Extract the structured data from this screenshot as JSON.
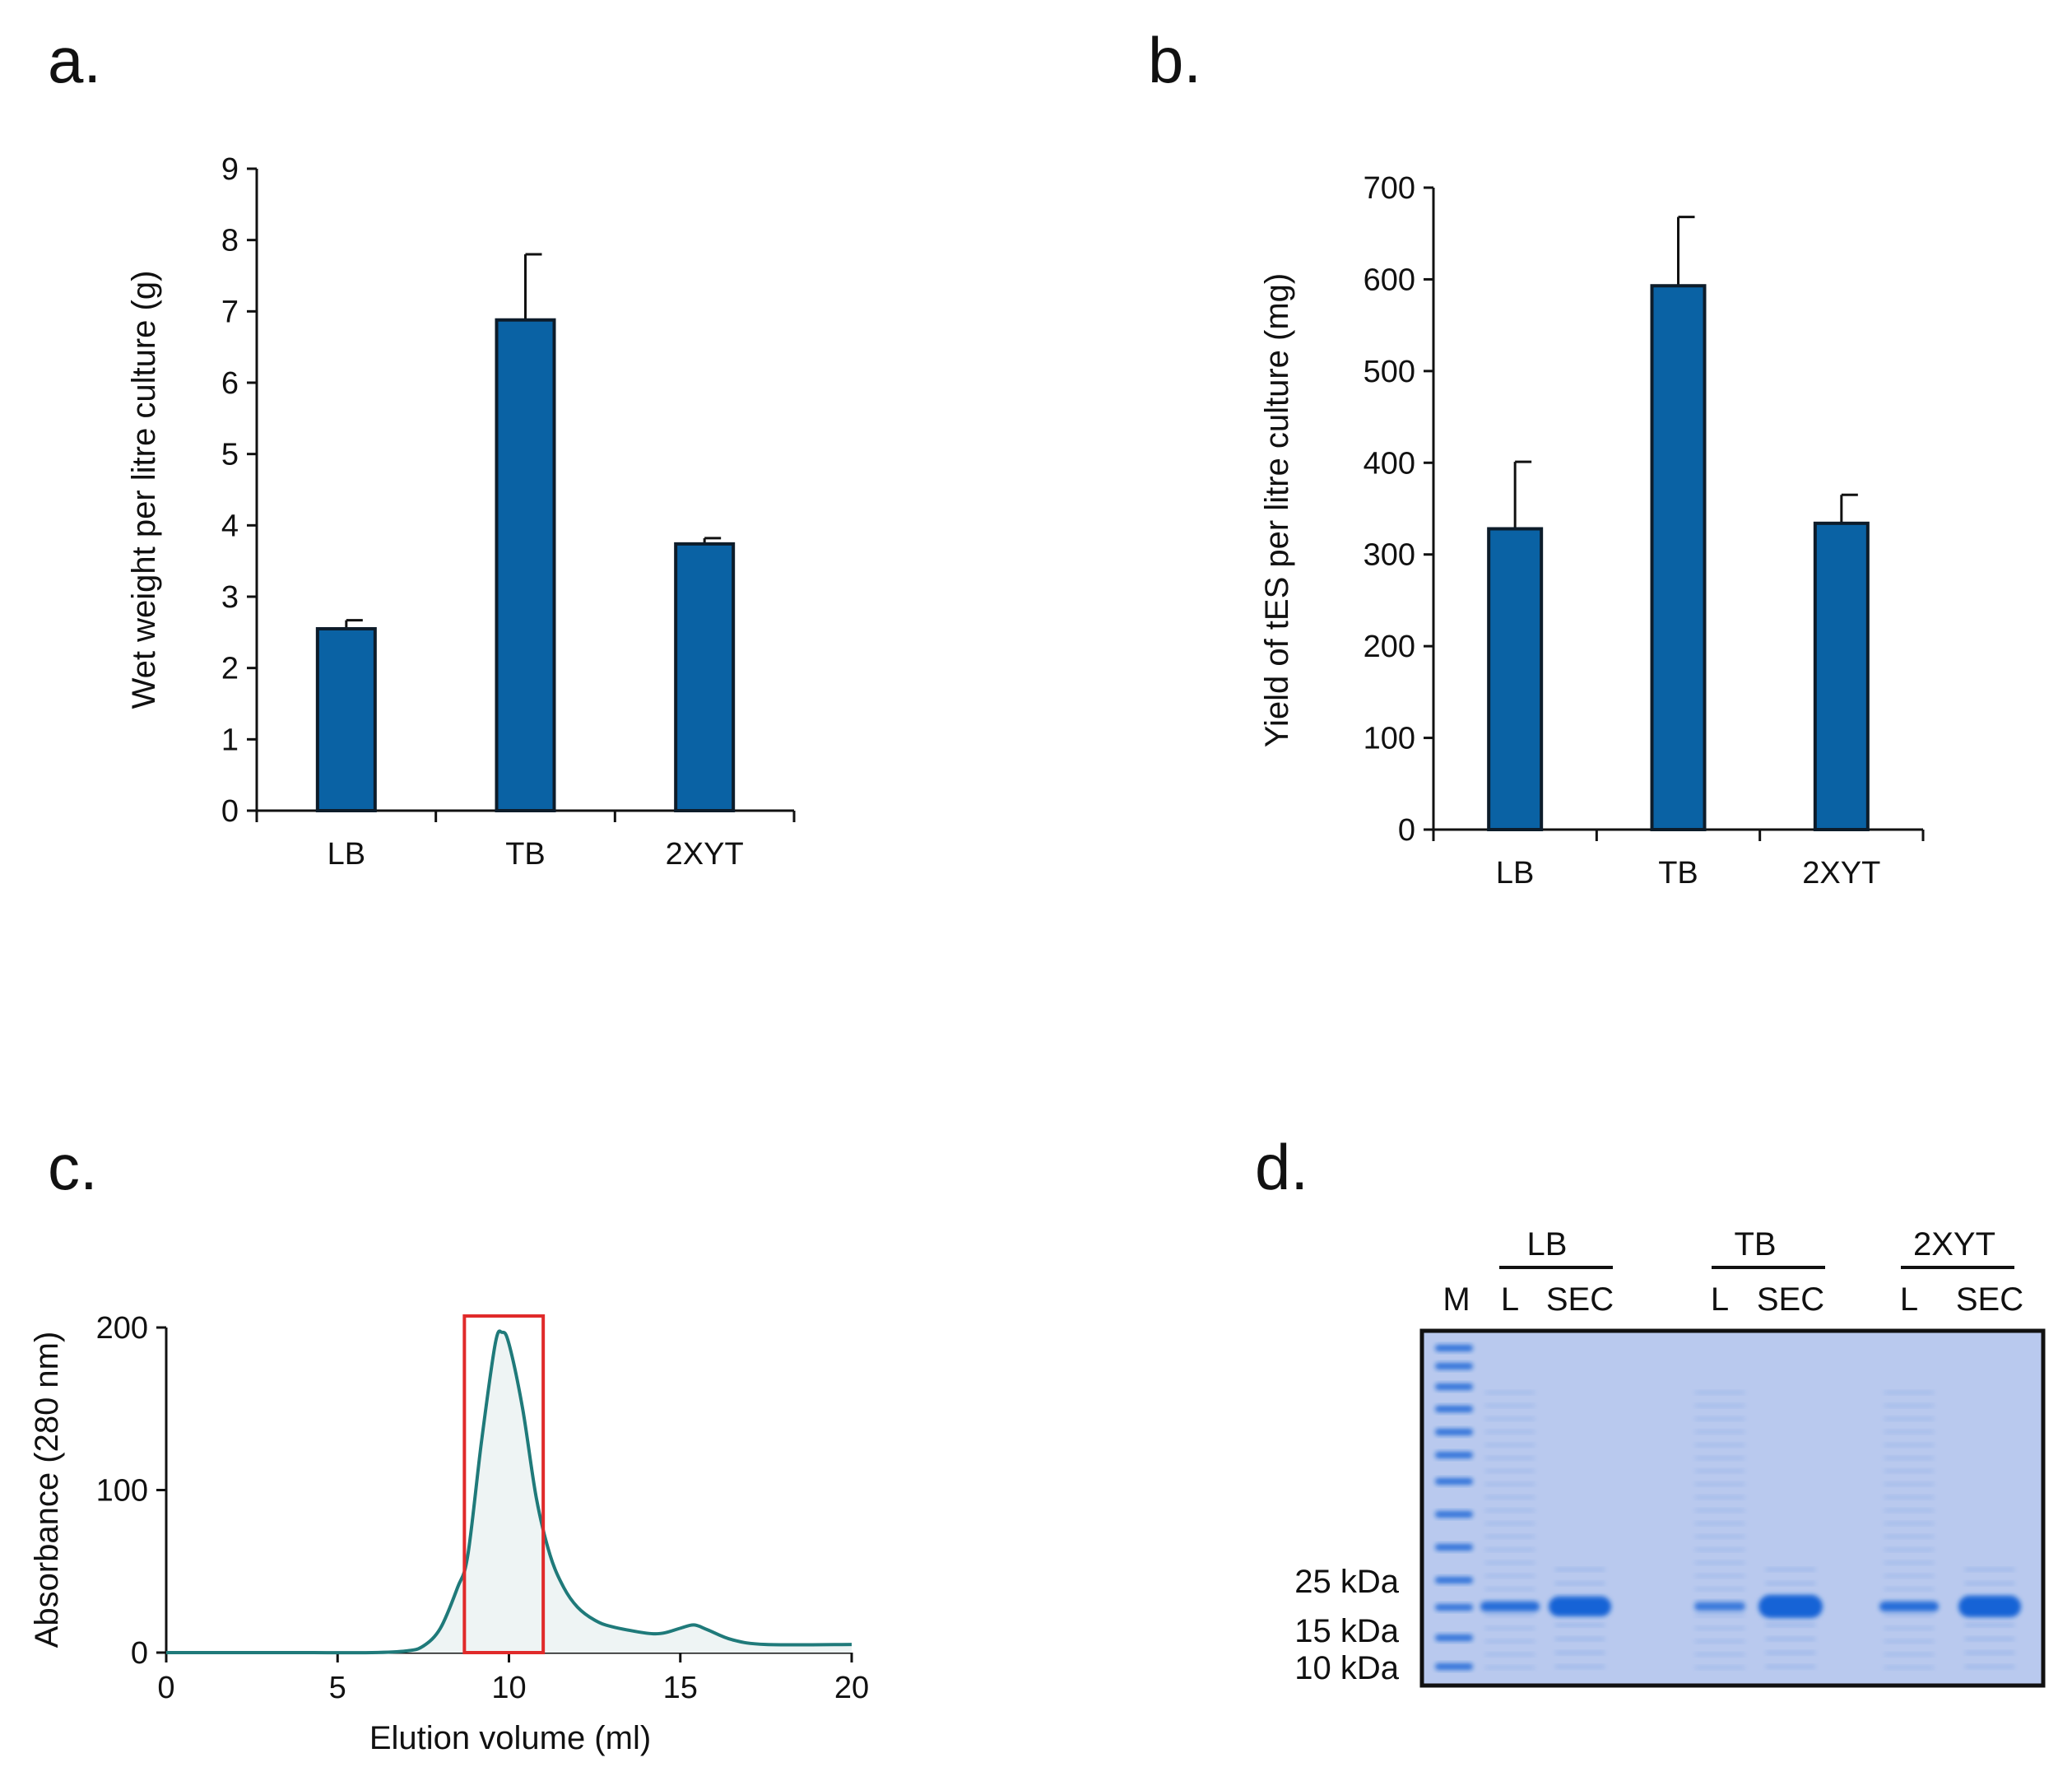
{
  "colors": {
    "bar": "#0a62a4",
    "bar_edge": "#0d1c2a",
    "trace": "#1f7a7a",
    "box": "#e02a2a",
    "gel_bg": "#b9c9ee",
    "gel_band": "#1464d6"
  },
  "chart_data": [
    {
      "panel": "a.",
      "type": "bar",
      "categories": [
        "LB",
        "TB",
        "2XYT"
      ],
      "values": [
        2.55,
        6.88,
        3.74
      ],
      "errors": [
        0.12,
        0.92,
        0.08
      ],
      "ylabel": "Wet weight per litre culture (g)",
      "xlabel": "",
      "ylim": [
        0,
        9
      ],
      "yticks": [
        "0",
        "1",
        "2",
        "3",
        "4",
        "5",
        "6",
        "7",
        "8",
        "9"
      ]
    },
    {
      "panel": "b.",
      "type": "bar",
      "categories": [
        "LB",
        "TB",
        "2XYT"
      ],
      "values": [
        328,
        593,
        334
      ],
      "errors": [
        73,
        75,
        31
      ],
      "ylabel": "Yield of tES per litre culture (mg)",
      "xlabel": "",
      "ylim": [
        0,
        700
      ],
      "yticks": [
        "0",
        "100",
        "200",
        "300",
        "400",
        "500",
        "600",
        "700"
      ]
    },
    {
      "panel": "c.",
      "type": "line",
      "x": [
        0,
        2,
        4,
        6,
        7,
        7.5,
        8,
        8.5,
        8.8,
        9.2,
        9.6,
        9.8,
        10.0,
        10.4,
        10.8,
        11.2,
        11.6,
        12,
        12.5,
        13,
        14,
        14.5,
        15,
        15.4,
        15.8,
        16.5,
        17.5,
        20
      ],
      "y": [
        0,
        0,
        0,
        0,
        1,
        4,
        15,
        40,
        60,
        130,
        190,
        197,
        190,
        150,
        95,
        60,
        40,
        28,
        20,
        16,
        12,
        12,
        15,
        17,
        14,
        8,
        5,
        5
      ],
      "xlabel": "Elution volume (ml)",
      "ylabel": "Absorbance (280 nm)",
      "xlim": [
        0,
        20
      ],
      "ylim": [
        0,
        200
      ],
      "xticks": [
        "0",
        "5",
        "10",
        "15",
        "20"
      ],
      "yticks": [
        "0",
        "100",
        "200"
      ],
      "highlight_range": [
        8.7,
        11.0
      ]
    }
  ],
  "gel": {
    "panel": "d.",
    "groups": [
      "LB",
      "TB",
      "2XYT"
    ],
    "lanes": [
      "M",
      "L",
      "SEC",
      "L",
      "SEC",
      "L",
      "SEC"
    ],
    "markers": [
      "25 kDa",
      "15 kDa",
      "10 kDa"
    ]
  }
}
